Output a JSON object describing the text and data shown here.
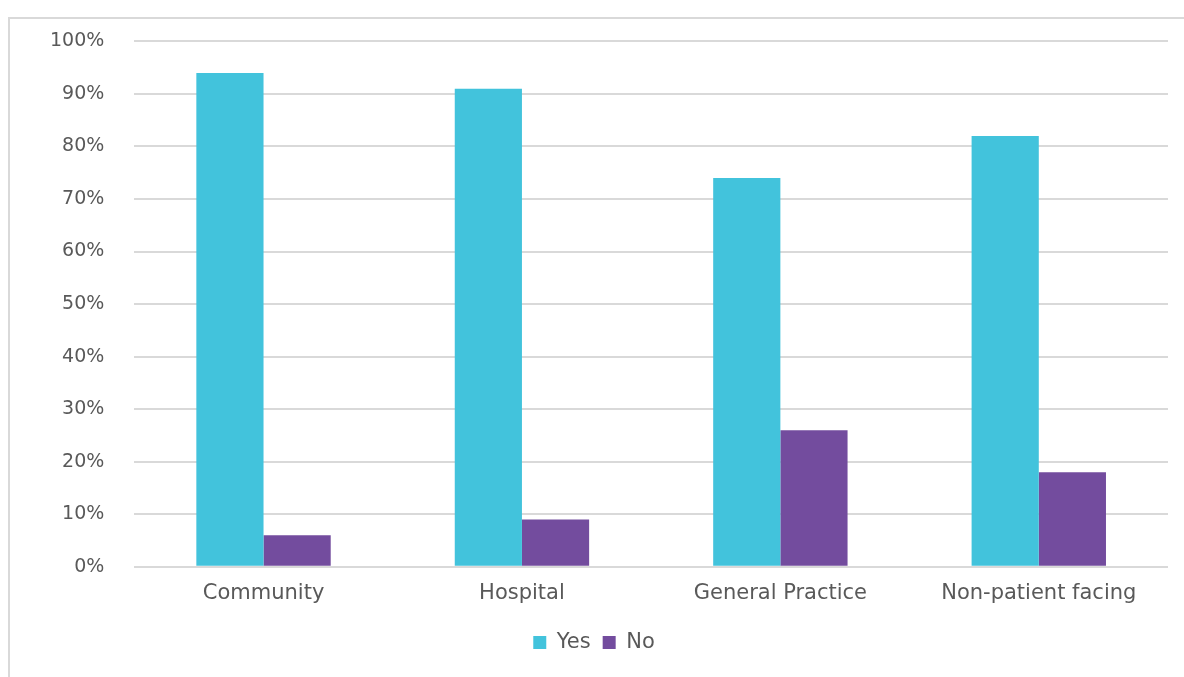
{
  "chart_data": {
    "type": "bar",
    "categories": [
      "Community",
      "Hospital",
      "General Practice",
      "Non-patient facing"
    ],
    "series": [
      {
        "name": "Yes",
        "color": "#42c3dc",
        "values": [
          94,
          91,
          74,
          82
        ]
      },
      {
        "name": "No",
        "color": "#734c9e",
        "values": [
          6,
          9,
          26,
          18
        ]
      }
    ],
    "ylim": [
      0,
      100
    ],
    "yticks": [
      {
        "value": 0,
        "label": "0%"
      },
      {
        "value": 10,
        "label": "10%"
      },
      {
        "value": 20,
        "label": "20%"
      },
      {
        "value": 30,
        "label": "30%"
      },
      {
        "value": 40,
        "label": "40%"
      },
      {
        "value": 50,
        "label": "50%"
      },
      {
        "value": 60,
        "label": "60%"
      },
      {
        "value": 70,
        "label": "70%"
      },
      {
        "value": 80,
        "label": "80%"
      },
      {
        "value": 90,
        "label": "90%"
      },
      {
        "value": 100,
        "label": "100%"
      }
    ],
    "grid": "y",
    "legend": "bottom"
  }
}
